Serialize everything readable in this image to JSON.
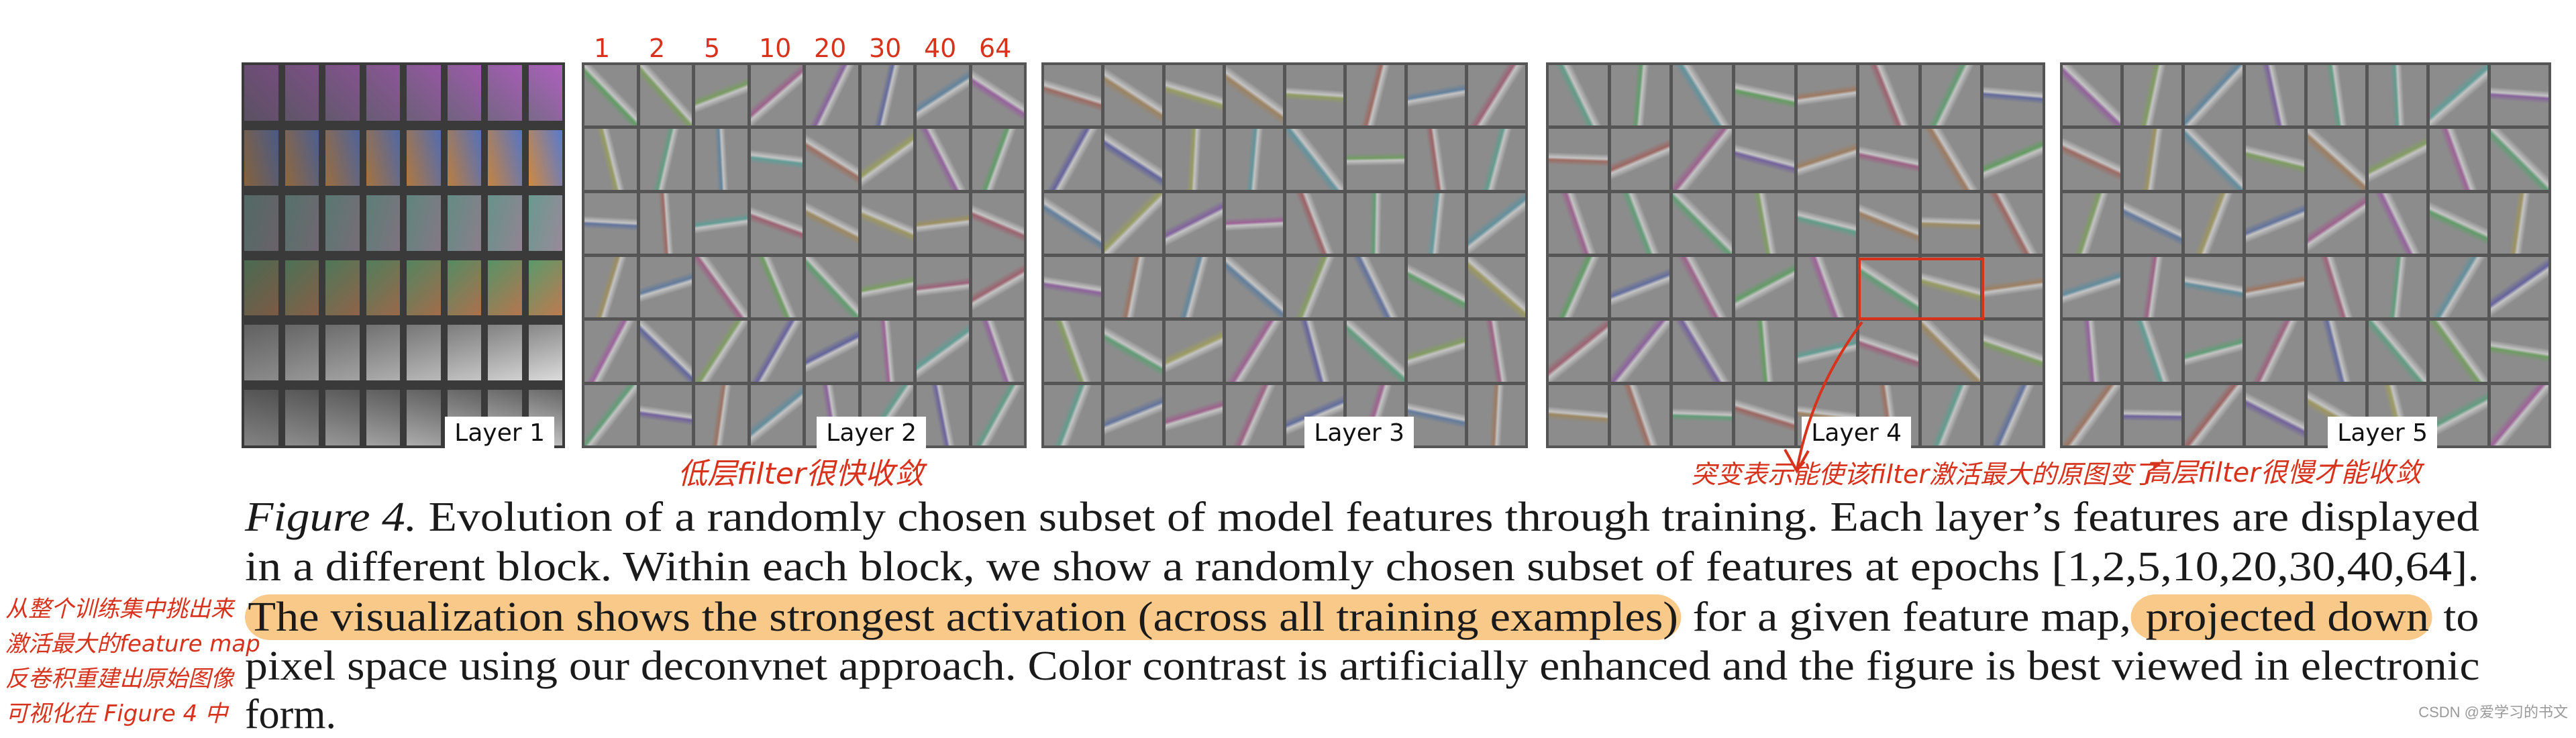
{
  "figure": {
    "panels": [
      {
        "label": "Layer 1"
      },
      {
        "label": "Layer 2"
      },
      {
        "label": "Layer 3"
      },
      {
        "label": "Layer 4"
      },
      {
        "label": "Layer 5"
      }
    ],
    "caption_lines": [
      [
        {
          "text": "Figure 4.",
          "style": "fig"
        },
        {
          "text": " Evolution of a randomly chosen subset of model features through training. Each layer’s features are displayed",
          "style": ""
        }
      ],
      [
        {
          "text": "in a different block. Within each block, we show a randomly chosen subset of features at epochs [1,2,5,10,20,30,40,64].",
          "style": ""
        }
      ],
      [
        {
          "text": "The visualization shows the strongest activation (across all training examples)",
          "style": "hl"
        },
        {
          "text": " for a given feature map,",
          "style": ""
        },
        {
          "text": " projected down",
          "style": "hl"
        },
        {
          "text": " to",
          "style": ""
        }
      ],
      [
        {
          "text": "pixel space using our deconvnet approach. Color contrast is artificially enhanced and the figure is best viewed in electronic",
          "style": ""
        }
      ],
      [
        {
          "text": "form.",
          "style": ""
        }
      ]
    ]
  },
  "annotations": {
    "epochs": [
      "1",
      "2",
      "5",
      "10",
      "20",
      "30",
      "40",
      "64"
    ],
    "low_layer_note": "低层filter很快收敛",
    "layer4_note": "突变表示能使该filter激活最大的原图变了",
    "high_layer_note": "高层filter很慢才能收敛",
    "side_note": [
      "从整个训练集中挑出来",
      "激活最大的feature map",
      "反卷积重建出原始图像",
      "可视化在 Figure 4 中"
    ],
    "ink_color": "#d7321c",
    "highlight_color": "#f9c98a"
  },
  "watermark": "CSDN @爱学习的书文"
}
